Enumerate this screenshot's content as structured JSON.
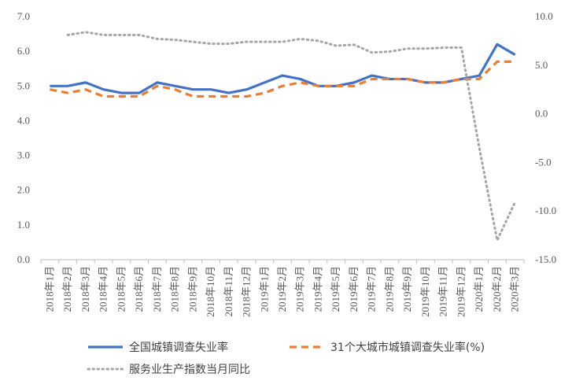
{
  "chart_data": {
    "type": "line",
    "categories": [
      "2018年1月",
      "2018年2月",
      "2018年3月",
      "2018年4月",
      "2018年5月",
      "2018年6月",
      "2018年7月",
      "2018年8月",
      "2018年9月",
      "2018年10月",
      "2018年11月",
      "2018年12月",
      "2019年1月",
      "2019年2月",
      "2019年3月",
      "2019年4月",
      "2019年5月",
      "2019年6月",
      "2019年7月",
      "2019年8月",
      "2019年9月",
      "2019年10月",
      "2019年11月",
      "2019年12月",
      "2020年1月",
      "2020年2月",
      "2020年3月"
    ],
    "left_axis": {
      "min": 0,
      "max": 7,
      "step": 1,
      "tick_labels": [
        "0.0",
        "1.0",
        "2.0",
        "3.0",
        "4.0",
        "5.0",
        "6.0",
        "7.0"
      ]
    },
    "right_axis": {
      "min": -15,
      "max": 10,
      "step": 5,
      "tick_labels": [
        "-15.0",
        "-10.0",
        "-5.0",
        "0.0",
        "5.0",
        "10.0"
      ]
    },
    "grid": false,
    "legend_position": "bottom",
    "series": [
      {
        "name": "全国城镇调查失业率",
        "axis": "left",
        "style": "solid",
        "color": "#4472C4",
        "values": [
          5.0,
          5.0,
          5.1,
          4.9,
          4.8,
          4.8,
          5.1,
          5.0,
          4.9,
          4.9,
          4.8,
          4.9,
          5.1,
          5.3,
          5.2,
          5.0,
          5.0,
          5.1,
          5.3,
          5.2,
          5.2,
          5.1,
          5.1,
          5.2,
          5.3,
          6.2,
          5.9
        ]
      },
      {
        "name": "31个大城市城镇调查失业率(%)",
        "axis": "left",
        "style": "dashed",
        "color": "#ED7D31",
        "values": [
          4.9,
          4.8,
          4.9,
          4.7,
          4.7,
          4.7,
          5.0,
          4.9,
          4.7,
          4.7,
          4.7,
          4.7,
          4.8,
          5.0,
          5.1,
          5.0,
          5.0,
          5.0,
          5.2,
          5.2,
          5.2,
          5.1,
          5.1,
          5.2,
          5.2,
          5.7,
          5.7
        ]
      },
      {
        "name": "服务业生产指数当月同比",
        "axis": "right",
        "style": "dotted",
        "color": "#A5A5A5",
        "values": [
          null,
          8.1,
          8.4,
          8.1,
          8.1,
          8.1,
          7.7,
          7.6,
          7.4,
          7.2,
          7.2,
          7.4,
          7.4,
          7.4,
          7.7,
          7.5,
          7.0,
          7.1,
          6.3,
          6.4,
          6.7,
          6.7,
          6.8,
          6.8,
          -3.5,
          -13.0,
          -9.1
        ]
      }
    ]
  }
}
